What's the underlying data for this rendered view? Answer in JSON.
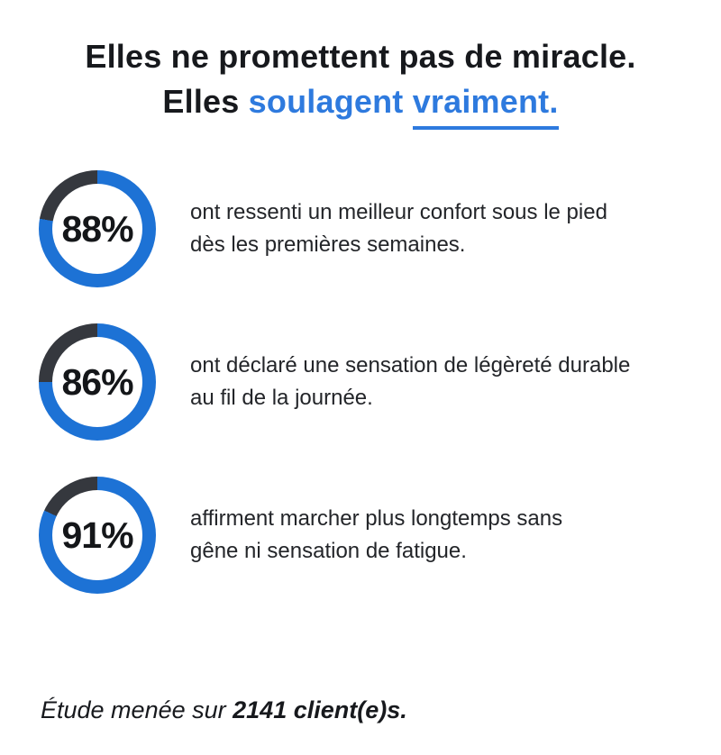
{
  "colors": {
    "accent_blue": "#2e7ade",
    "ring_blue": "#1d72d5",
    "ring_gray": "#35383e",
    "heading_text": "#17191d",
    "body_text": "#232529"
  },
  "title": {
    "line1": "Elles ne promettent pas de miracle.",
    "line2_prefix": "Elles ",
    "line2_accent": "soulagent ",
    "line2_underlined": "vraiment."
  },
  "stats": [
    {
      "value_label": "88%",
      "percent": 88,
      "gray_arc_deg": 80,
      "lines": [
        "ont ressenti un meilleur confort sous le pied",
        "dès les premières semaines."
      ]
    },
    {
      "value_label": "86%",
      "percent": 86,
      "gray_arc_deg": 90,
      "lines": [
        "ont déclaré une sensation de légèreté durable",
        "au fil de la journée."
      ]
    },
    {
      "value_label": "91%",
      "percent": 91,
      "gray_arc_deg": 65,
      "lines": [
        "affirment marcher plus longtemps sans",
        "gêne ni sensation de fatigue."
      ]
    }
  ],
  "footnote": {
    "prefix": "Étude menée sur ",
    "bold": "2141 client(e)s."
  },
  "chart_data": {
    "type": "pie",
    "subtype": "donut-progress-rings",
    "title": "Elles ne promettent pas de miracle. Elles soulagent vraiment.",
    "unit": "%",
    "series": [
      {
        "name": "ont ressenti un meilleur confort sous le pied dès les premières semaines.",
        "value": 88,
        "remainder": 12
      },
      {
        "name": "ont déclaré une sensation de légèreté durable au fil de la journée.",
        "value": 86,
        "remainder": 14
      },
      {
        "name": "affirment marcher plus longtemps sans gêne ni sensation de fatigue.",
        "value": 91,
        "remainder": 9
      }
    ],
    "note": "Étude menée sur 2141 client(e)s.",
    "legend_position": "right-of-ring",
    "ring_start_angle_deg": 0,
    "ring_direction": "clockwise"
  }
}
